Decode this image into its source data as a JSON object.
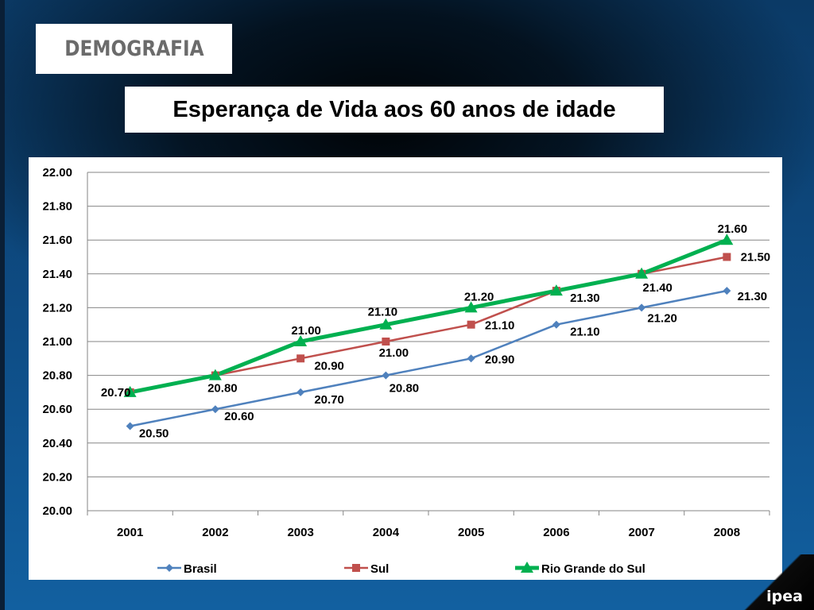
{
  "section": {
    "label": "DEMOGRAFIA"
  },
  "title": "Esperança de Vida aos 60 anos de idade",
  "logo": {
    "text": "ipea"
  },
  "chart_data": {
    "type": "line",
    "categories": [
      "2001",
      "2002",
      "2003",
      "2004",
      "2005",
      "2006",
      "2007",
      "2008"
    ],
    "ylim": [
      20.0,
      22.0
    ],
    "yticks": [
      "20.00",
      "20.20",
      "20.40",
      "20.60",
      "20.80",
      "21.00",
      "21.20",
      "21.40",
      "21.60",
      "21.80",
      "22.00"
    ],
    "grid": true,
    "legend_position": "bottom",
    "series": [
      {
        "name": "Brasil",
        "color": "#4f81bd",
        "marker": "diamond",
        "values": [
          20.5,
          20.6,
          20.7,
          20.8,
          20.9,
          21.1,
          21.2,
          21.3
        ],
        "labels": [
          "20.50",
          "20.60",
          "20.70",
          "20.80",
          "20.90",
          "21.10",
          "21.20",
          "21.30"
        ]
      },
      {
        "name": "Sul",
        "color": "#c0504d",
        "marker": "square",
        "values": [
          20.7,
          20.8,
          20.9,
          21.0,
          21.1,
          21.3,
          21.4,
          21.5
        ],
        "labels": [
          "",
          "",
          "20.90",
          "21.00",
          "21.10",
          "",
          "",
          "21.50"
        ]
      },
      {
        "name": "Rio Grande do Sul",
        "color": "#00b050",
        "marker": "triangle",
        "values": [
          20.7,
          20.8,
          21.0,
          21.1,
          21.2,
          21.3,
          21.4,
          21.6
        ],
        "labels": [
          "20.70",
          "20.80",
          "21.00",
          "21.10",
          "21.20",
          "21.30",
          "21.40",
          "21.60"
        ]
      }
    ]
  }
}
